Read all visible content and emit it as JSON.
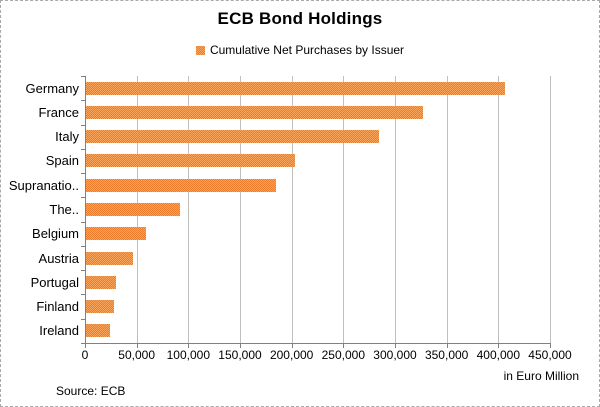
{
  "chart_data": {
    "type": "bar",
    "orientation": "horizontal",
    "title": "ECB Bond Holdings",
    "legend": [
      "Cumulative Net Purchases by Issuer"
    ],
    "legend_position": "top-center",
    "unit_label": "in Euro Million",
    "source_label": "Source: ECB",
    "categories": [
      "Germany",
      "France",
      "Italy",
      "Spain",
      "Supranationals",
      "The Netherlands",
      "Belgium",
      "Austria",
      "Portugal",
      "Finland",
      "Ireland"
    ],
    "category_display_labels": [
      "Germany",
      "France",
      "Italy",
      "Spain",
      "Supranatio..",
      "The..",
      "Belgium",
      "Austria",
      "Portugal",
      "Finland",
      "Ireland"
    ],
    "values": [
      405000,
      326000,
      284000,
      202000,
      184000,
      91000,
      58000,
      45000,
      29000,
      27000,
      23000
    ],
    "xlim": [
      0,
      450000
    ],
    "x_tick_interval": 50000,
    "x_tick_labels": [
      "0",
      "50,000",
      "100,000",
      "150,000",
      "200,000",
      "250,000",
      "300,000",
      "350,000",
      "400,000",
      "450,000"
    ],
    "grid": true,
    "bar_color": "#F0913F",
    "bar_dither_colors": [
      "#ED7D2B",
      "#F9A45C"
    ],
    "axis_color": "#808080",
    "gridline_color": "#BFBFBF"
  }
}
